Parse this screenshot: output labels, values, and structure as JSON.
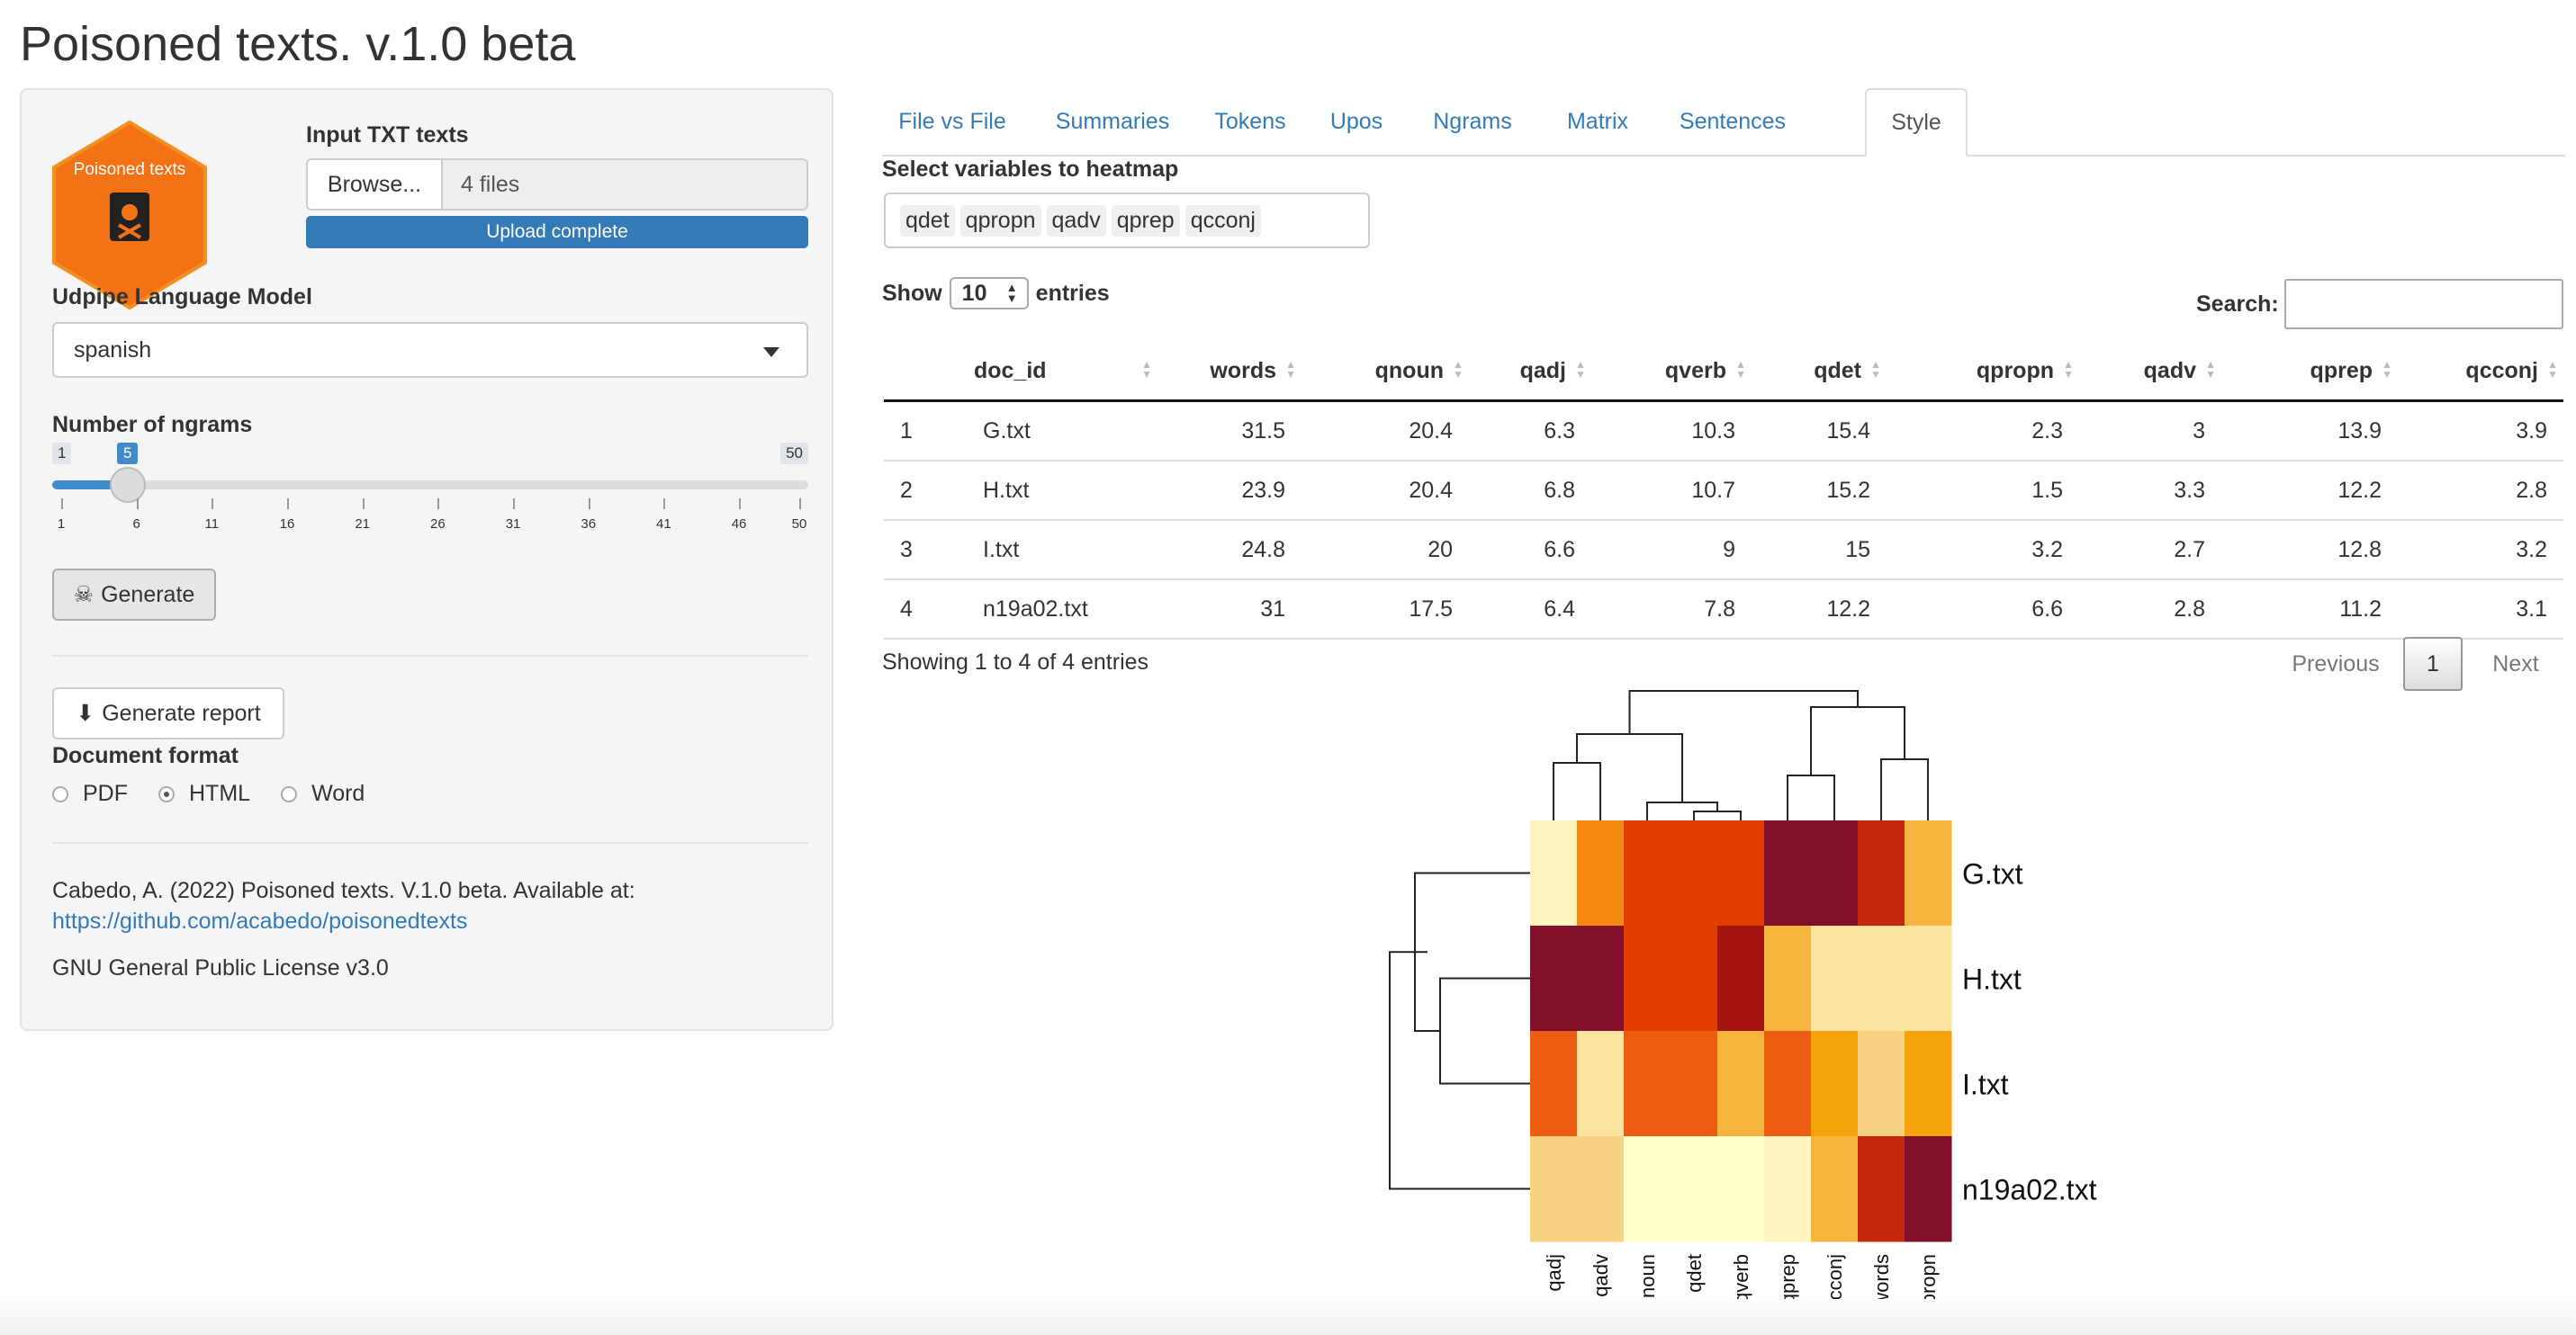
{
  "app": {
    "title": "Poisoned texts. v.1.0 beta"
  },
  "sidebar": {
    "logo_text": "Poisoned texts",
    "input_label": "Input TXT texts",
    "browse_label": "Browse...",
    "files_value": "4 files",
    "upload_status": "Upload complete",
    "upload_progress_percent": 100,
    "lang_label": "Udpipe Language Model",
    "lang_value": "spanish",
    "ngrams_label": "Number of ngrams",
    "slider": {
      "min": "1",
      "max": "50",
      "value": "5",
      "ticks": [
        "1",
        "6",
        "11",
        "16",
        "21",
        "26",
        "31",
        "36",
        "41",
        "46",
        "50"
      ]
    },
    "generate_label": "Generate",
    "report_label": "Generate report",
    "format_label": "Document format",
    "formats": [
      "PDF",
      "HTML",
      "Word"
    ],
    "format_selected": "HTML",
    "citation": "Cabedo, A. (2022) Poisoned texts. V.1.0 beta. Available at:",
    "citation_link": "https://github.com/acabedo/poisonedtexts",
    "license": "GNU General Public License v3.0"
  },
  "tabs": [
    "File vs File",
    "Summaries",
    "Tokens",
    "Upos",
    "Ngrams",
    "Matrix",
    "Sentences",
    "Style"
  ],
  "active_tab": "Style",
  "style": {
    "select_label": "Select variables to heatmap",
    "selected_vars": [
      "qdet",
      "qpropn",
      "qadv",
      "qprep",
      "qcconj"
    ],
    "show_label": "Show",
    "entries_value": "10",
    "entries_label": "entries",
    "search_label": "Search:",
    "columns": [
      "",
      "doc_id",
      "words",
      "qnoun",
      "qadj",
      "qverb",
      "qdet",
      "qpropn",
      "qadv",
      "qprep",
      "qcconj"
    ],
    "rows": [
      [
        "1",
        "G.txt",
        "31.5",
        "20.4",
        "6.3",
        "10.3",
        "15.4",
        "2.3",
        "3",
        "13.9",
        "3.9"
      ],
      [
        "2",
        "H.txt",
        "23.9",
        "20.4",
        "6.8",
        "10.7",
        "15.2",
        "1.5",
        "3.3",
        "12.2",
        "2.8"
      ],
      [
        "3",
        "I.txt",
        "24.8",
        "20",
        "6.6",
        "9",
        "15",
        "3.2",
        "2.7",
        "12.8",
        "3.2"
      ],
      [
        "4",
        "n19a02.txt",
        "31",
        "17.5",
        "6.4",
        "7.8",
        "12.2",
        "6.6",
        "2.8",
        "11.2",
        "3.1"
      ]
    ],
    "info": "Showing 1 to 4 of 4 entries",
    "pager": {
      "prev": "Previous",
      "current": "1",
      "next": "Next"
    }
  },
  "chart_data": {
    "type": "heatmap",
    "rows": [
      "G.txt",
      "H.txt",
      "I.txt",
      "n19a02.txt"
    ],
    "columns": [
      "qadj",
      "qadv",
      "qnoun",
      "qdet",
      "qverb",
      "qprep",
      "qcconj",
      "words",
      "qpropn"
    ],
    "colors": [
      [
        "#fff3c0",
        "#f5890f",
        "#e23e00",
        "#e23e00",
        "#e23e00",
        "#83102a",
        "#83102a",
        "#c5290d",
        "#f5b43d"
      ],
      [
        "#83102a",
        "#83102a",
        "#e23e00",
        "#e23e00",
        "#a5140f",
        "#f5b43d",
        "#fbe3a0",
        "#fbe3a0",
        "#fbe3a0"
      ],
      [
        "#ec5d12",
        "#fbe3a0",
        "#ec5d12",
        "#ec5d12",
        "#f5b43d",
        "#ec5d12",
        "#f4a30b",
        "#f6d282",
        "#f4a30b"
      ],
      [
        "#f6d282",
        "#f6d282",
        "#ffffcc",
        "#ffffcc",
        "#ffffcc",
        "#fff3c0",
        "#f5b43d",
        "#c5290d",
        "#83102a"
      ]
    ],
    "row_dendrogram": "H.txt and I.txt join first, then G.txt, then n19a02.txt",
    "column_dendrogram": "(qadj,qadv) ; ((qnoun,(qdet,qverb)) ) ; ((qprep,qcconj),(words,qpropn))"
  },
  "colors": {
    "accent": "#337ab7",
    "logo": "#f47216"
  }
}
